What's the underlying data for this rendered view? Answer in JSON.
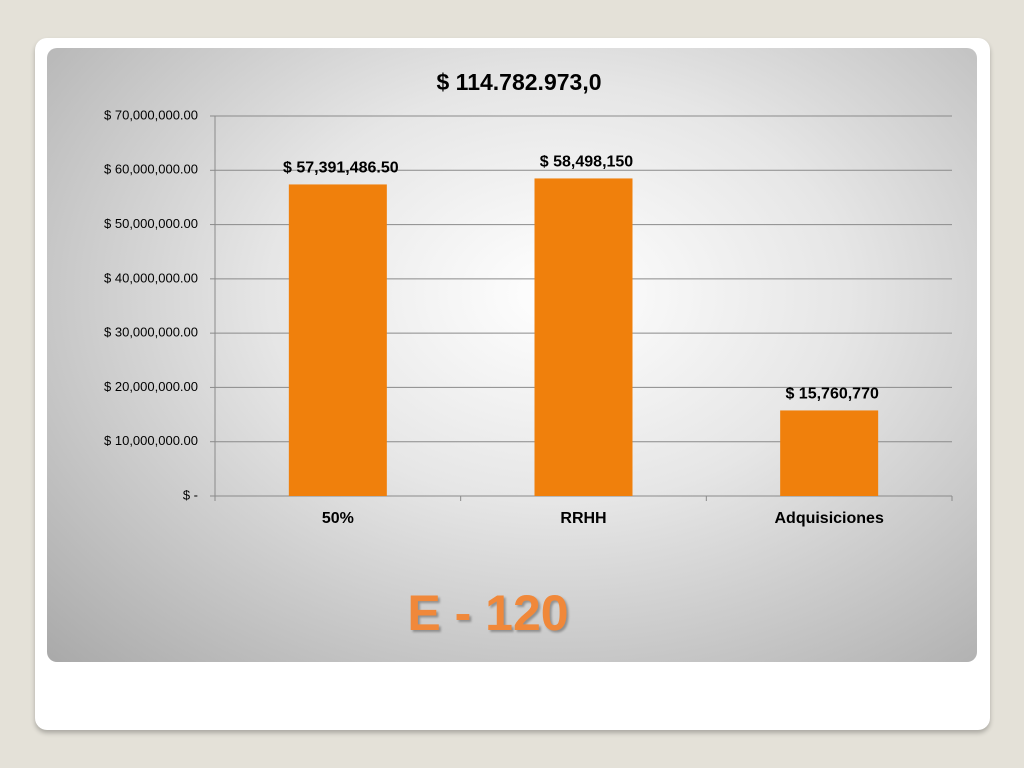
{
  "chart_data": {
    "type": "bar",
    "title": "$ 114.782.973,0",
    "categories": [
      "50%",
      "RRHH",
      "Adquisiciones"
    ],
    "values": [
      57391486.5,
      58498150,
      15760770
    ],
    "value_labels": [
      "$ 57,391,486.50",
      "$ 58,498,150",
      "$ 15,760,770"
    ],
    "color": "#f0800c",
    "ylim": [
      0,
      70000000
    ],
    "yticks": [
      {
        "value": 0,
        "label": "$ -"
      },
      {
        "value": 10000000,
        "label": "$ 10,000,000.00"
      },
      {
        "value": 20000000,
        "label": "$ 20,000,000.00"
      },
      {
        "value": 30000000,
        "label": "$ 30,000,000.00"
      },
      {
        "value": 40000000,
        "label": "$ 40,000,000.00"
      },
      {
        "value": 50000000,
        "label": "$ 50,000,000.00"
      },
      {
        "value": 60000000,
        "label": "$ 60,000,000.00"
      },
      {
        "value": 70000000,
        "label": "$ 70,000,000.00"
      }
    ],
    "grid": true
  },
  "slide": {
    "caption": "E - 120"
  }
}
